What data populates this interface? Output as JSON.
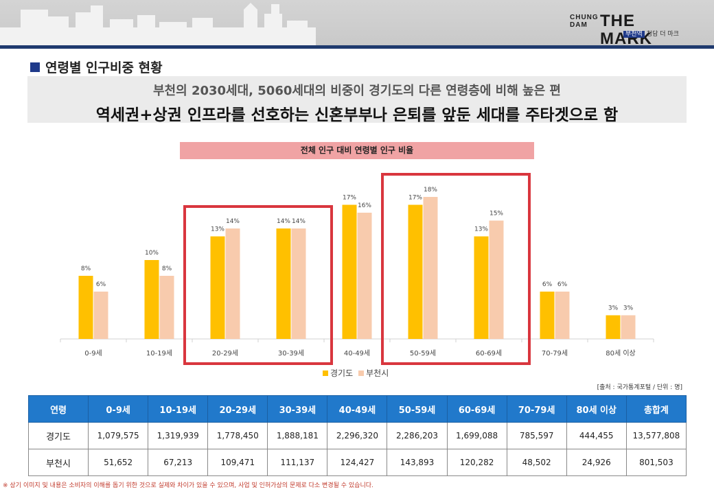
{
  "header": {
    "logo_small": "CHUNG DAM",
    "logo_big": "THE MARK",
    "logo_badge": "부천역",
    "logo_sub": "청담 더 마크"
  },
  "section_title": "연령별 인구비중 현황",
  "summary": {
    "line1": "부천의 2030세대, 5060세대의 비중이 경기도의 다른 연령층에 비해 높은 편",
    "line2": "역세권+상권 인프라를 선호하는 신혼부부나 은퇴를 앞둔 세대를 주타겟으로 함"
  },
  "chart_data": {
    "type": "bar",
    "title": "전체 인구 대비 연령별 인구 비율",
    "categories": [
      "0-9세",
      "10-19세",
      "20-29세",
      "30-39세",
      "40-49세",
      "50-59세",
      "60-69세",
      "70-79세",
      "80세 이상"
    ],
    "series": [
      {
        "name": "경기도",
        "color": "#ffc000",
        "values": [
          8,
          10,
          13,
          14,
          17,
          17,
          13,
          6,
          3
        ]
      },
      {
        "name": "부천시",
        "color": "#f8cbad",
        "values": [
          6,
          8,
          14,
          14,
          16,
          18,
          15,
          6,
          3
        ]
      }
    ],
    "value_labels": {
      "경기도": [
        "8%",
        "10%",
        "13%",
        "14%",
        "17%",
        "17%",
        "13%",
        "6%",
        "3%"
      ],
      "부천시": [
        "6%",
        "8%",
        "14%",
        "14%",
        "16%",
        "18%",
        "15%",
        "6%",
        "3%"
      ]
    },
    "ylim": [
      0,
      20
    ],
    "highlight_color": "#d9363e",
    "highlights": [
      [
        2,
        3
      ],
      [
        5,
        6
      ]
    ]
  },
  "source_note": "[출처 : 국가통계포털 / 단위 : 명]",
  "table": {
    "headers": [
      "연령",
      "0-9세",
      "10-19세",
      "20-29세",
      "30-39세",
      "40-49세",
      "50-59세",
      "60-69세",
      "70-79세",
      "80세 이상",
      "총합계"
    ],
    "rows": [
      [
        "경기도",
        "1,079,575",
        "1,319,939",
        "1,778,450",
        "1,888,181",
        "2,296,320",
        "2,286,203",
        "1,699,088",
        "785,597",
        "444,455",
        "13,577,808"
      ],
      [
        "부천시",
        "51,652",
        "67,213",
        "109,471",
        "111,137",
        "124,427",
        "143,893",
        "120,282",
        "48,502",
        "24,926",
        "801,503"
      ]
    ]
  },
  "footnote": "※ 상기 이미지 및 내용은 소비자의 이해를 돕기 위한 것으로 실제와 차이가 있을 수 있으며, 사업 및 인허가상의 문제로 다소 변경될 수 있습니다."
}
